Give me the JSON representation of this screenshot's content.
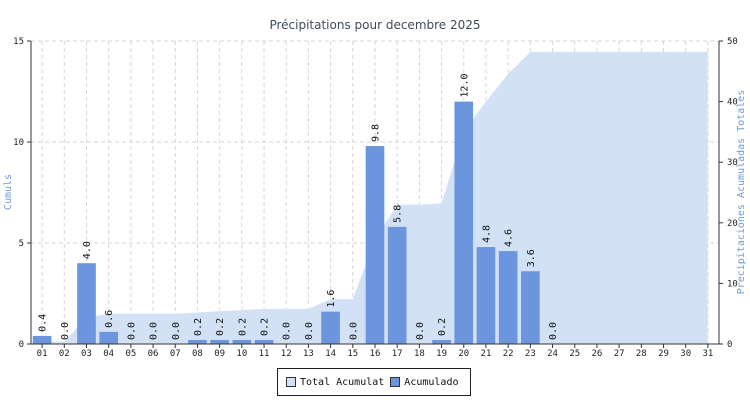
{
  "chart_data": {
    "type": "bar",
    "title": "Précipitations pour decembre 2025",
    "ylabel_left": "Cumuls",
    "ylabel_right": "Precipitaciones Acumuladas Totales",
    "categories": [
      "01",
      "02",
      "03",
      "04",
      "05",
      "06",
      "07",
      "08",
      "09",
      "10",
      "11",
      "12",
      "13",
      "14",
      "15",
      "16",
      "17",
      "18",
      "19",
      "20",
      "21",
      "22",
      "23",
      "24",
      "25",
      "26",
      "27",
      "28",
      "29",
      "30",
      "31"
    ],
    "series": [
      {
        "name": "Acumulado",
        "type": "bar",
        "axis": "left",
        "color": "#6b96dd",
        "values": [
          0.4,
          0.0,
          4.0,
          0.6,
          0.0,
          0.0,
          0.0,
          0.2,
          0.2,
          0.2,
          0.2,
          0.0,
          0.0,
          1.6,
          0.0,
          9.8,
          5.8,
          0.0,
          0.2,
          12.0,
          4.8,
          4.6,
          3.6,
          0.0,
          null,
          null,
          null,
          null,
          null,
          null,
          null
        ],
        "labels": [
          "0.4",
          "0.0",
          "4.0",
          "0.6",
          "0.0",
          "0.0",
          "0.0",
          "0.2",
          "0.2",
          "0.2",
          "0.2",
          "0.0",
          "0.0",
          "1.6",
          "0.0",
          "9.8",
          "5.8",
          "0.0",
          "0.2",
          "12.0",
          "4.8",
          "4.6",
          "3.6",
          "0.0",
          "",
          "",
          "",
          "",
          "",
          "",
          ""
        ]
      },
      {
        "name": "Total Acumulat",
        "type": "area",
        "axis": "right",
        "color": "#d3e1f7",
        "values": [
          0.4,
          0.4,
          4.4,
          5.0,
          5.0,
          5.0,
          5.0,
          5.2,
          5.4,
          5.6,
          5.8,
          5.8,
          5.8,
          7.4,
          7.4,
          17.2,
          23.0,
          23.0,
          23.2,
          35.2,
          40.0,
          44.6,
          48.2,
          48.2,
          48.2,
          48.2,
          48.2,
          48.2,
          48.2,
          48.2,
          48.2
        ]
      }
    ],
    "ylim_left": [
      0,
      15
    ],
    "yticks_left": [
      0,
      5,
      10,
      15
    ],
    "ylim_right": [
      0,
      50
    ],
    "yticks_right": [
      0,
      10,
      20,
      30,
      40,
      50
    ],
    "grid": true,
    "legend_position": "bottom-center"
  },
  "legend": {
    "area_label": "Total Acumulat",
    "bar_label": "Acumulado",
    "area_color": "#d3e1f7",
    "bar_color": "#6b96dd"
  }
}
